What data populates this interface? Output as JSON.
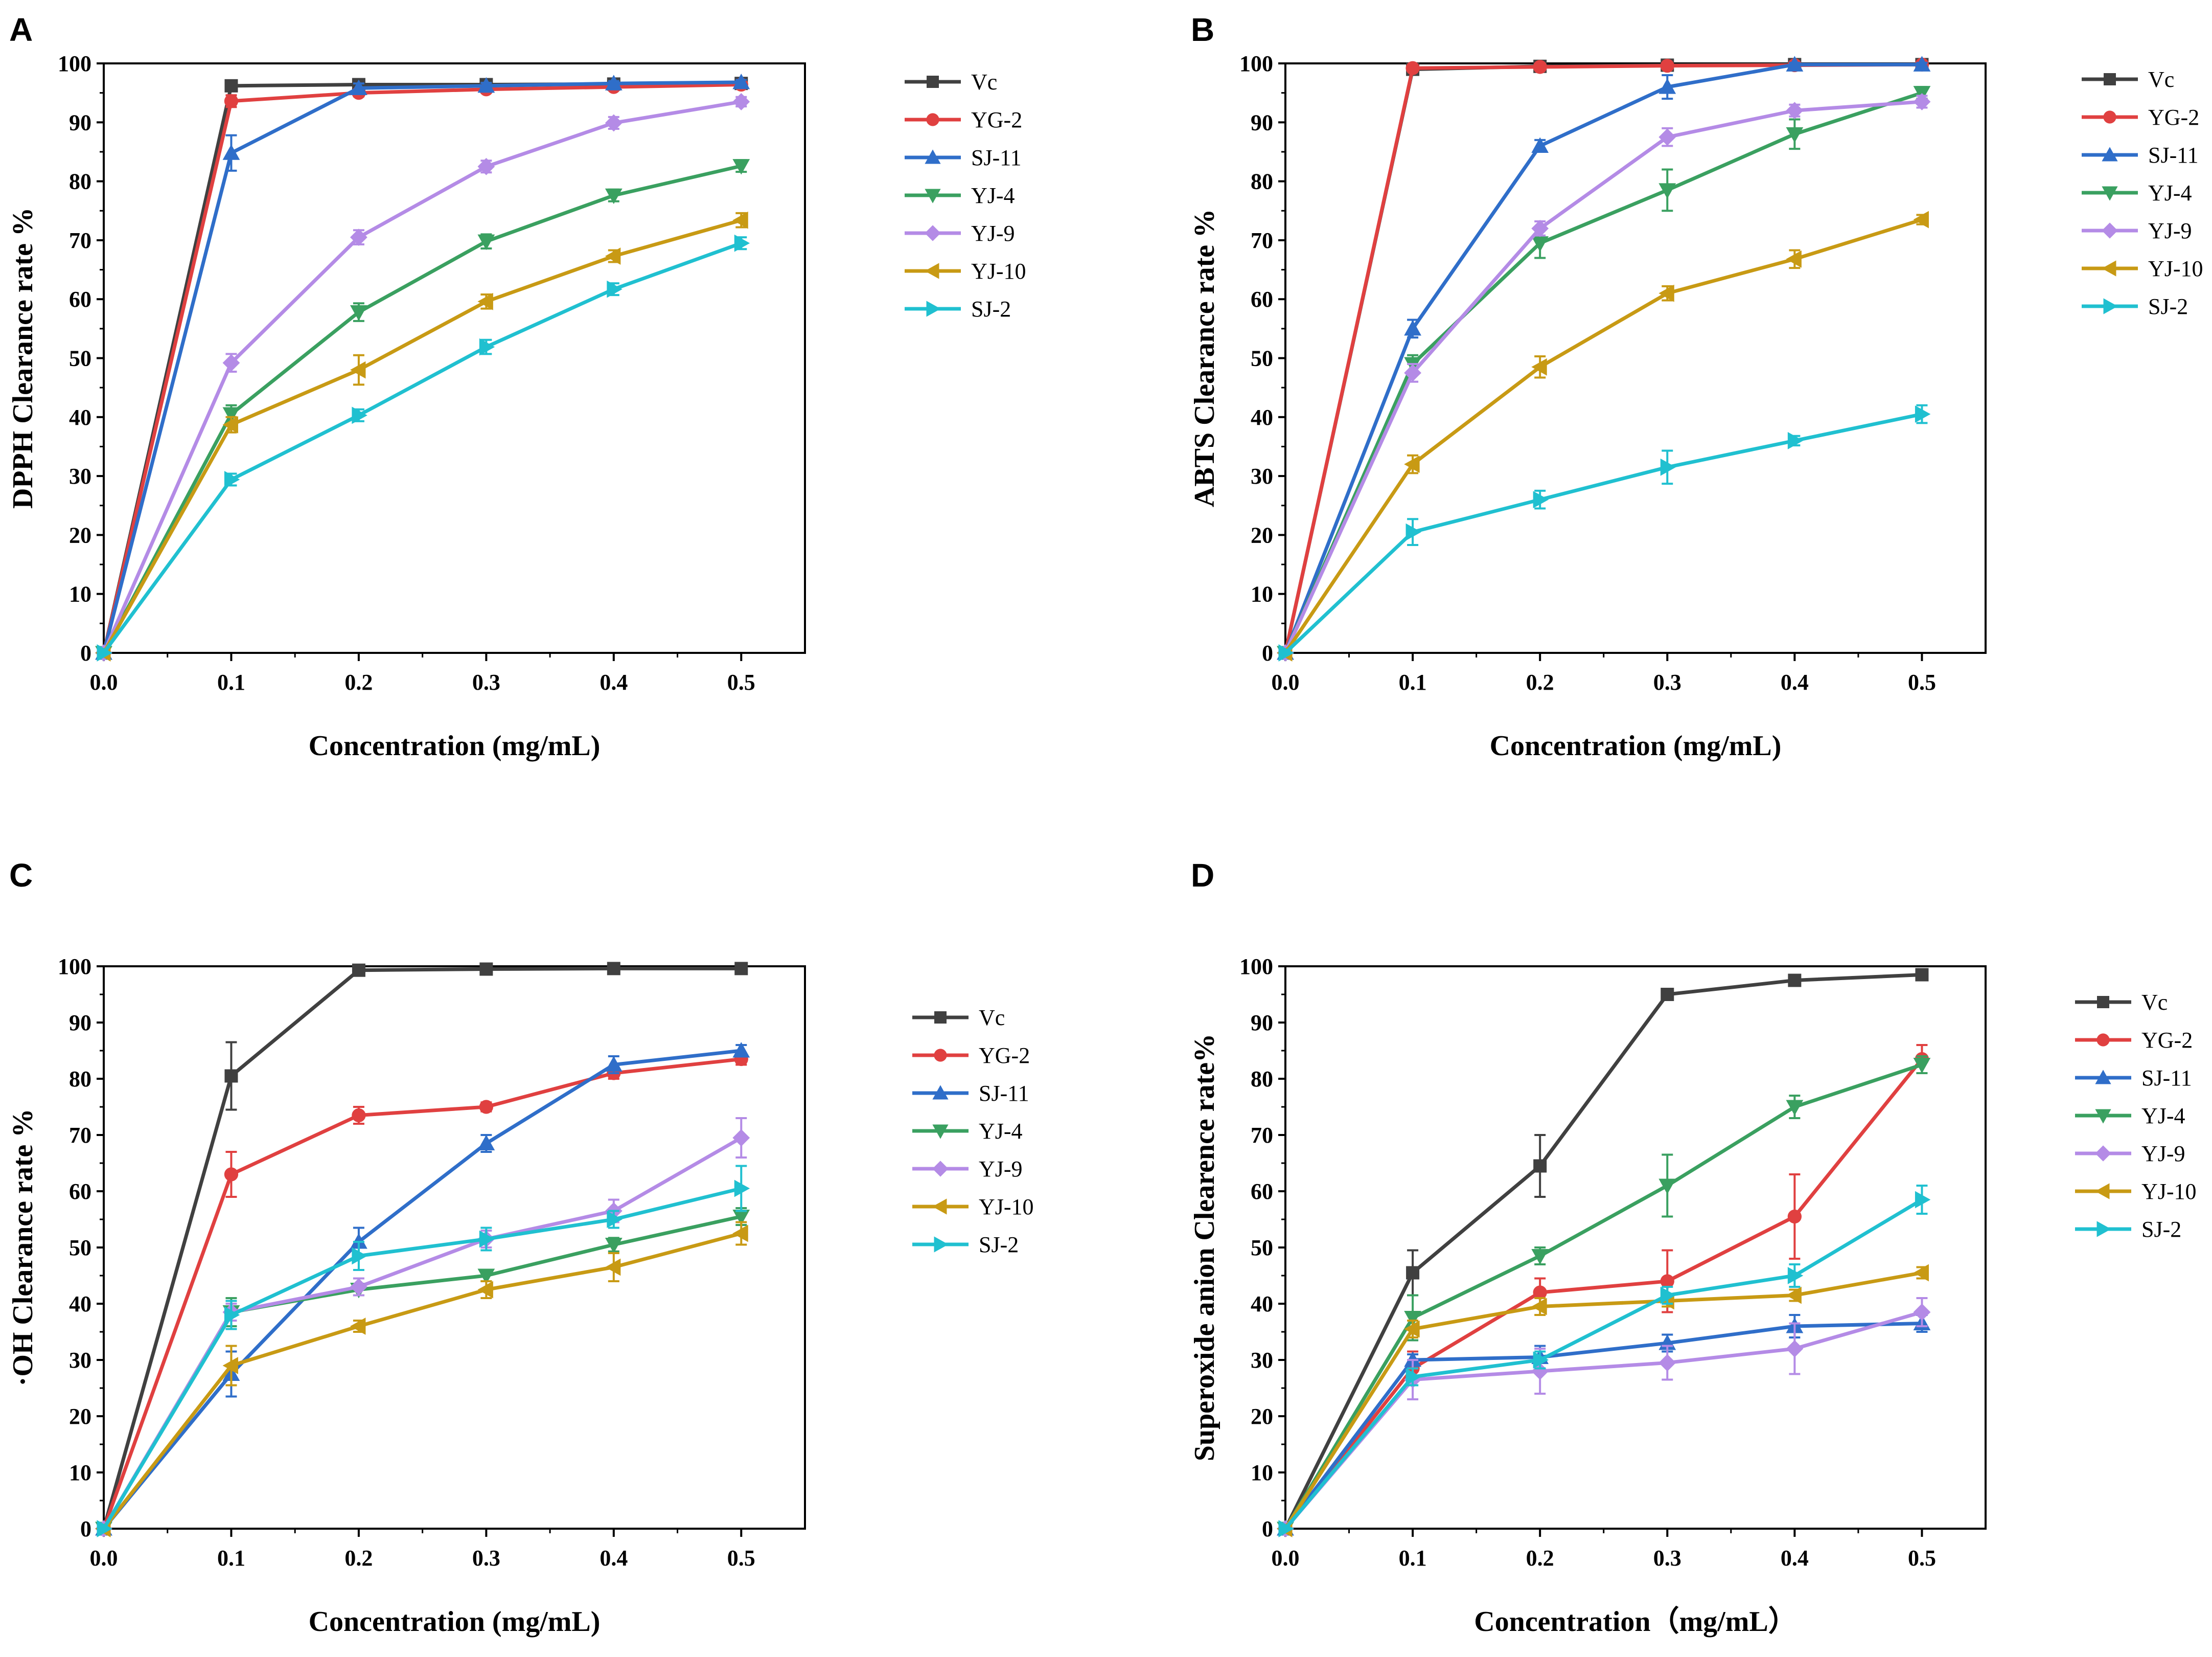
{
  "figure": {
    "colors": {
      "Vc": "#404040",
      "YG-2": "#e04040",
      "SJ-11": "#2f6ec9",
      "YJ-4": "#3aa060",
      "YJ-9": "#b48be6",
      "YJ-10": "#c89a14",
      "SJ-2": "#20c0d0"
    },
    "markers": {
      "Vc": "square",
      "YG-2": "circle",
      "SJ-11": "triangle-up",
      "YJ-4": "triangle-down",
      "YJ-9": "diamond",
      "YJ-10": "triangle-left",
      "SJ-2": "triangle-right"
    }
  },
  "chart_data": [
    {
      "panel": "A",
      "type": "line",
      "xlabel": "Concentration (mg/mL)",
      "ylabel": "DPPH Clearance rate %",
      "x": [
        0.0,
        0.1,
        0.2,
        0.3,
        0.4,
        0.5
      ],
      "xticks": [
        "0.0",
        "0.1",
        "0.2",
        "0.3",
        "0.4",
        "0.5"
      ],
      "xlim": [
        0,
        0.55
      ],
      "ylim": [
        0,
        100
      ],
      "yticks": [
        "0",
        "10",
        "20",
        "30",
        "40",
        "50",
        "60",
        "70",
        "80",
        "90",
        "100"
      ],
      "legend": "right",
      "series": [
        {
          "name": "Vc",
          "values": [
            0,
            96.2,
            96.4,
            96.4,
            96.5,
            96.6
          ],
          "errors": [
            0,
            0.5,
            0.3,
            0.3,
            0.3,
            0.3
          ]
        },
        {
          "name": "YG-2",
          "values": [
            0,
            93.6,
            95.0,
            95.6,
            96.0,
            96.4
          ],
          "errors": [
            0,
            1.0,
            0.6,
            0.5,
            0.5,
            0.4
          ]
        },
        {
          "name": "SJ-11",
          "values": [
            0,
            84.8,
            95.8,
            96.2,
            96.6,
            96.8
          ],
          "errors": [
            0,
            3.0,
            0.8,
            0.5,
            0.4,
            0.4
          ]
        },
        {
          "name": "YJ-4",
          "values": [
            0,
            40.5,
            57.8,
            69.8,
            77.6,
            82.6
          ],
          "errors": [
            0,
            1.5,
            1.5,
            1.2,
            1.0,
            1.0
          ]
        },
        {
          "name": "YJ-9",
          "values": [
            0,
            49.2,
            70.5,
            82.5,
            89.9,
            93.5
          ],
          "errors": [
            0,
            1.5,
            1.2,
            1.0,
            1.0,
            0.8
          ]
        },
        {
          "name": "YJ-10",
          "values": [
            0,
            38.7,
            48.0,
            59.6,
            67.3,
            73.4
          ],
          "errors": [
            0,
            1.3,
            2.5,
            1.2,
            1.0,
            1.2
          ]
        },
        {
          "name": "SJ-2",
          "values": [
            0,
            29.4,
            40.3,
            51.9,
            61.7,
            69.5
          ],
          "errors": [
            0,
            1.0,
            1.0,
            1.2,
            1.0,
            1.0
          ]
        }
      ]
    },
    {
      "panel": "B",
      "type": "line",
      "xlabel": "Concentration (mg/mL)",
      "ylabel": "ABTS Clearance rate %",
      "x": [
        0.0,
        0.1,
        0.2,
        0.3,
        0.4,
        0.5
      ],
      "xticks": [
        "0.0",
        "0.1",
        "0.2",
        "0.3",
        "0.4",
        "0.5"
      ],
      "xlim": [
        0,
        0.55
      ],
      "ylim": [
        0,
        100
      ],
      "yticks": [
        "0",
        "10",
        "20",
        "30",
        "40",
        "50",
        "60",
        "70",
        "80",
        "90",
        "100"
      ],
      "legend": "right",
      "series": [
        {
          "name": "Vc",
          "values": [
            0,
            99.0,
            99.5,
            99.7,
            99.8,
            99.8
          ],
          "errors": [
            0,
            0.3,
            0.2,
            0.2,
            0.2,
            0.2
          ]
        },
        {
          "name": "YG-2",
          "values": [
            0,
            99.2,
            99.4,
            99.6,
            99.7,
            99.8
          ],
          "errors": [
            0,
            0.3,
            0.2,
            0.2,
            0.2,
            0.2
          ]
        },
        {
          "name": "SJ-11",
          "values": [
            0,
            55.0,
            86.0,
            96.0,
            99.8,
            99.8
          ],
          "errors": [
            0,
            1.5,
            1.0,
            2.0,
            0.3,
            0.3
          ]
        },
        {
          "name": "YJ-4",
          "values": [
            0,
            49.0,
            69.5,
            78.5,
            88.0,
            95.0
          ],
          "errors": [
            0,
            1.5,
            2.5,
            3.5,
            2.5,
            1.0
          ]
        },
        {
          "name": "YJ-9",
          "values": [
            0,
            47.5,
            72.0,
            87.5,
            92.0,
            93.5
          ],
          "errors": [
            0,
            1.5,
            1.2,
            1.5,
            1.0,
            1.0
          ]
        },
        {
          "name": "YJ-10",
          "values": [
            0,
            32.0,
            48.5,
            61.0,
            66.8,
            73.5
          ],
          "errors": [
            0,
            1.5,
            1.8,
            1.2,
            1.5,
            0.8
          ]
        },
        {
          "name": "SJ-2",
          "values": [
            0,
            20.5,
            26.0,
            31.5,
            36.0,
            40.5
          ],
          "errors": [
            0,
            2.2,
            1.5,
            2.8,
            0.8,
            1.5
          ]
        }
      ]
    },
    {
      "panel": "C",
      "type": "line",
      "xlabel": "Concentration (mg/mL)",
      "ylabel": "·OH Clearance rate %",
      "x": [
        0.0,
        0.1,
        0.2,
        0.3,
        0.4,
        0.5
      ],
      "xticks": [
        "0.0",
        "0.1",
        "0.2",
        "0.3",
        "0.4",
        "0.5"
      ],
      "xlim": [
        0,
        0.55
      ],
      "ylim": [
        0,
        100
      ],
      "yticks": [
        "0",
        "10",
        "20",
        "30",
        "40",
        "50",
        "60",
        "70",
        "80",
        "90",
        "100"
      ],
      "legend": "right",
      "series": [
        {
          "name": "Vc",
          "values": [
            0,
            80.5,
            99.3,
            99.5,
            99.6,
            99.6
          ],
          "errors": [
            0,
            6.0,
            0.3,
            0.3,
            0.3,
            0.3
          ]
        },
        {
          "name": "YG-2",
          "values": [
            0,
            63.0,
            73.5,
            75.0,
            81.0,
            83.5
          ],
          "errors": [
            0,
            4.0,
            1.5,
            0.8,
            1.0,
            1.0
          ]
        },
        {
          "name": "SJ-11",
          "values": [
            0,
            27.5,
            51.0,
            68.5,
            82.5,
            85.0
          ],
          "errors": [
            0,
            4.0,
            2.5,
            1.5,
            1.5,
            1.0
          ]
        },
        {
          "name": "YJ-4",
          "values": [
            0,
            38.5,
            42.5,
            45.0,
            50.5,
            55.5
          ],
          "errors": [
            0,
            2.5,
            1.0,
            1.0,
            1.2,
            1.5
          ]
        },
        {
          "name": "YJ-9",
          "values": [
            0,
            38.5,
            43.0,
            51.5,
            56.5,
            69.5
          ],
          "errors": [
            0,
            1.5,
            1.5,
            1.5,
            2.0,
            3.5
          ]
        },
        {
          "name": "YJ-10",
          "values": [
            0,
            29.0,
            36.0,
            42.5,
            46.5,
            52.5
          ],
          "errors": [
            0,
            3.5,
            1.0,
            1.5,
            2.5,
            2.0
          ]
        },
        {
          "name": "SJ-2",
          "values": [
            0,
            38.0,
            48.5,
            51.5,
            55.0,
            60.5
          ],
          "errors": [
            0,
            2.5,
            2.5,
            2.0,
            1.5,
            4.0
          ]
        }
      ]
    },
    {
      "panel": "D",
      "type": "line",
      "xlabel": "Concentration（mg/mL）",
      "ylabel": "Superoxide anion Clearence rate%",
      "x": [
        0.0,
        0.1,
        0.2,
        0.3,
        0.4,
        0.5
      ],
      "xticks": [
        "0.0",
        "0.1",
        "0.2",
        "0.3",
        "0.4",
        "0.5"
      ],
      "xlim": [
        0,
        0.55
      ],
      "ylim": [
        0,
        100
      ],
      "yticks": [
        "0",
        "10",
        "20",
        "30",
        "40",
        "50",
        "60",
        "70",
        "80",
        "90",
        "100"
      ],
      "legend": "right",
      "series": [
        {
          "name": "Vc",
          "values": [
            0,
            45.5,
            64.5,
            95.0,
            97.5,
            98.5
          ],
          "errors": [
            0,
            4.0,
            5.5,
            0.5,
            0.5,
            0.5
          ]
        },
        {
          "name": "YG-2",
          "values": [
            0,
            28.5,
            42.0,
            44.0,
            55.5,
            83.5
          ],
          "errors": [
            0,
            3.0,
            2.5,
            5.5,
            7.5,
            2.5
          ]
        },
        {
          "name": "SJ-11",
          "values": [
            0,
            30.0,
            30.5,
            33.0,
            36.0,
            36.5
          ],
          "errors": [
            0,
            1.0,
            2.0,
            1.5,
            2.0,
            1.5
          ]
        },
        {
          "name": "YJ-4",
          "values": [
            0,
            37.5,
            48.5,
            61.0,
            75.0,
            82.5
          ],
          "errors": [
            0,
            4.0,
            1.5,
            5.5,
            2.0,
            1.5
          ]
        },
        {
          "name": "YJ-9",
          "values": [
            0,
            26.5,
            28.0,
            29.5,
            32.0,
            38.5
          ],
          "errors": [
            0,
            3.5,
            4.0,
            3.0,
            4.5,
            2.5
          ]
        },
        {
          "name": "YJ-10",
          "values": [
            0,
            35.5,
            39.5,
            40.5,
            41.5,
            45.5
          ],
          "errors": [
            0,
            1.5,
            1.5,
            1.0,
            1.0,
            1.0
          ]
        },
        {
          "name": "SJ-2",
          "values": [
            0,
            27.0,
            30.0,
            41.5,
            45.0,
            58.5
          ],
          "errors": [
            0,
            1.5,
            1.5,
            1.5,
            2.0,
            2.5
          ]
        }
      ]
    }
  ]
}
